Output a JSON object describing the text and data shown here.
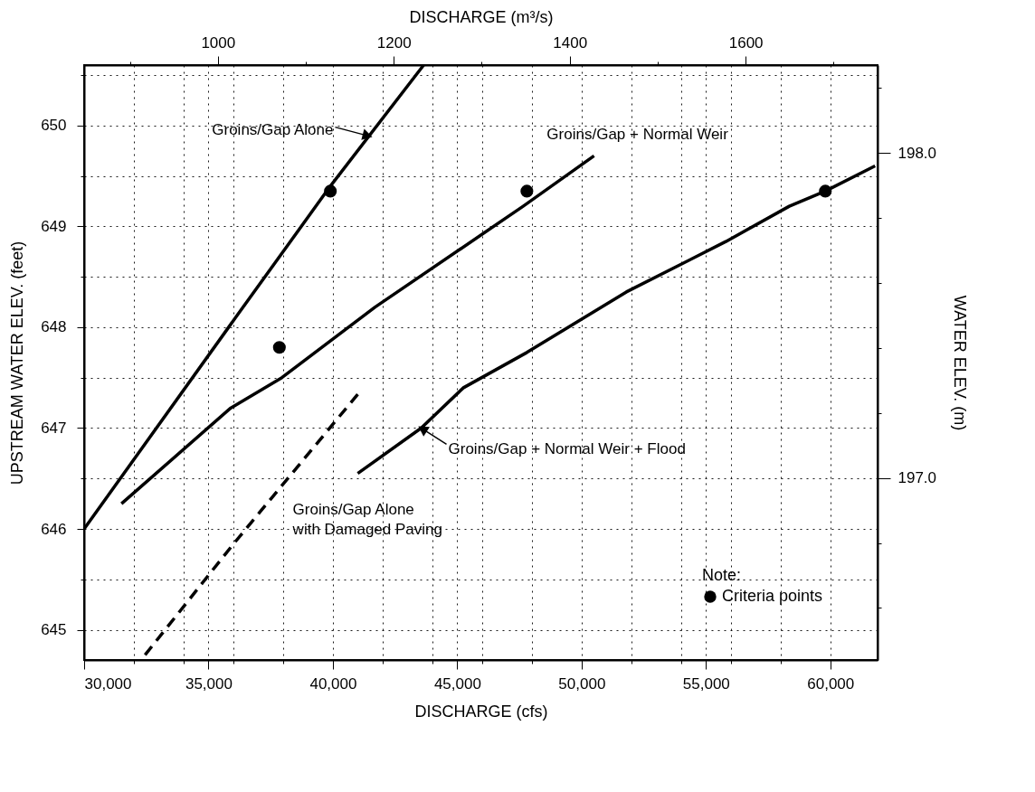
{
  "chart_data": {
    "type": "line",
    "xlabel": "DISCHARGE (cfs)",
    "x2label": "DISCHARGE (m³/s)",
    "ylabel": "UPSTREAM WATER ELEV. (feet)",
    "y2label": "WATER ELEV. (m)",
    "legend_title": "Note:",
    "legend": "bottom right",
    "grid": true,
    "line_style": "solid",
    "marker": "none",
    "xlim": [
      30000,
      61900
    ],
    "xticks": [
      {
        "value": 30000,
        "label": "30,000"
      },
      {
        "value": 32000,
        "label": null
      },
      {
        "value": 34000,
        "label": null
      },
      {
        "value": 35000,
        "label": "35,000"
      },
      {
        "value": 36000,
        "label": null
      },
      {
        "value": 38000,
        "label": null
      },
      {
        "value": 40000,
        "label": "40,000"
      },
      {
        "value": 42000,
        "label": null
      },
      {
        "value": 44000,
        "label": null
      },
      {
        "value": 45000,
        "label": "45,000"
      },
      {
        "value": 46000,
        "label": null
      },
      {
        "value": 48000,
        "label": null
      },
      {
        "value": 50000,
        "label": "50,000"
      },
      {
        "value": 52000,
        "label": null
      },
      {
        "value": 54000,
        "label": null
      },
      {
        "value": 55000,
        "label": "55,000"
      },
      {
        "value": 56000,
        "label": null
      },
      {
        "value": 58000,
        "label": null
      },
      {
        "value": 60000,
        "label": "60,000"
      }
    ],
    "ylim": [
      644.7,
      650.6
    ],
    "yticks": [
      645,
      {
        "value": 645.5,
        "label": null
      },
      646,
      {
        "value": 646.5,
        "label": null
      },
      647,
      {
        "value": 647.5,
        "label": null
      },
      648,
      {
        "value": 648.5,
        "label": null
      },
      649,
      {
        "value": 649.5,
        "label": null
      },
      650,
      {
        "value": 650.5,
        "label": null
      }
    ],
    "x2lim": [
      848,
      1750
    ],
    "x2ticks": [
      {
        "value": 900,
        "label": null
      },
      1000,
      {
        "value": 1100,
        "label": null
      },
      1200,
      {
        "value": 1300,
        "label": null
      },
      1400,
      {
        "value": 1500,
        "label": null
      },
      1600,
      {
        "value": 1700,
        "label": null
      }
    ],
    "y2lim": [
      196.44,
      198.27
    ],
    "y2ticks": [
      {
        "value": 196.6,
        "label": null
      },
      {
        "value": 196.8,
        "label": null
      },
      {
        "value": 197.0,
        "label": "197.0"
      },
      {
        "value": 197.2,
        "label": null
      },
      {
        "value": 197.4,
        "label": null
      },
      {
        "value": 197.6,
        "label": null
      },
      {
        "value": 197.8,
        "label": null
      },
      {
        "value": 198.0,
        "label": "198.0"
      },
      {
        "value": 198.2,
        "label": null
      }
    ],
    "series": [
      {
        "name": "Groins/Gap Alone",
        "color": "#000000",
        "x": [
          30000,
          36100,
          39900,
          43650
        ],
        "values": [
          646.0,
          648.1,
          649.4,
          650.6
        ]
      },
      {
        "name": "Groins/Gap + Normal Weir",
        "color": "#000000",
        "x": [
          31500,
          35900,
          37950,
          41700,
          47650,
          50500
        ],
        "values": [
          646.25,
          647.2,
          647.5,
          648.2,
          649.2,
          649.7
        ]
      },
      {
        "name": "Groins/Gap + Normal Weir + Flood",
        "color": "#000000",
        "x": [
          41000,
          43550,
          45250,
          47800,
          51800,
          55800,
          58350,
          59800,
          61800
        ],
        "values": [
          646.55,
          647.0,
          647.4,
          647.75,
          648.35,
          648.85,
          649.2,
          649.35,
          649.6
        ]
      },
      {
        "name": "Groins/Gap Alone\nwith Damaged Paving",
        "color": "#000000",
        "line_style": "dashed",
        "x": [
          32450,
          36000,
          41050
        ],
        "values": [
          644.75,
          645.85,
          647.35
        ]
      },
      {
        "name": "Criteria points",
        "type": "scatter",
        "marker": "circle",
        "color": "#000000",
        "x": [
          37850,
          39900,
          47800,
          59800
        ],
        "values": [
          647.8,
          649.35,
          649.35,
          649.35
        ]
      }
    ]
  }
}
